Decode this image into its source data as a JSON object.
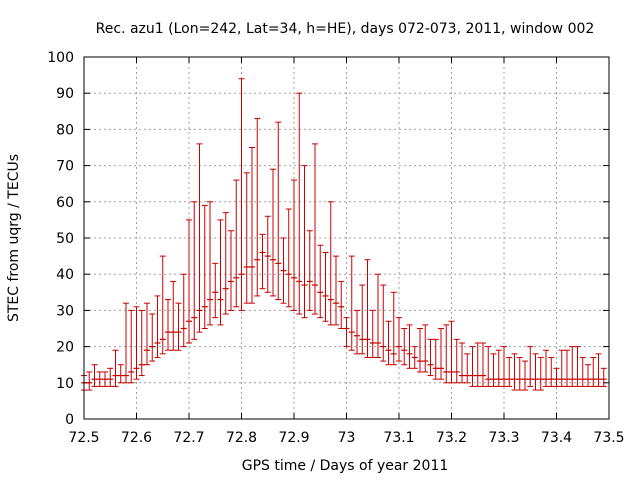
{
  "chart_data": {
    "type": "scatter",
    "title": "Rec. azu1 (Lon=242, Lat=34, h=HE), days 072-073, 2011, window 002",
    "xlabel": "GPS time / Days of year 2011",
    "ylabel": "STEC from uqrg / TECUs",
    "xlim": [
      72.5,
      73.5
    ],
    "ylim": [
      0,
      100
    ],
    "xticks": [
      72.5,
      72.6,
      72.7,
      72.8,
      72.9,
      73,
      73.1,
      73.2,
      73.3,
      73.4,
      73.5
    ],
    "xtick_labels": [
      "72.5",
      "72.6",
      "72.7",
      "72.8",
      "72.9",
      "73",
      "73.1",
      "73.2",
      "73.3",
      "73.4",
      "73.5"
    ],
    "yticks": [
      0,
      10,
      20,
      30,
      40,
      50,
      60,
      70,
      80,
      90,
      100
    ],
    "ytick_labels": [
      "0",
      "10",
      "20",
      "30",
      "40",
      "50",
      "60",
      "70",
      "80",
      "90",
      "100"
    ],
    "grid": true,
    "color": "#c80000",
    "series": [
      {
        "x": [
          72.5,
          72.51,
          72.52,
          72.53,
          72.54,
          72.55,
          72.56,
          72.57,
          72.58,
          72.59,
          72.6,
          72.61,
          72.62,
          72.63,
          72.64,
          72.65,
          72.66,
          72.67,
          72.68,
          72.69,
          72.7,
          72.71,
          72.72,
          72.73,
          72.74,
          72.75,
          72.76,
          72.77,
          72.78,
          72.79,
          72.8,
          72.81,
          72.82,
          72.83,
          72.84,
          72.85,
          72.86,
          72.87,
          72.88,
          72.89,
          72.9,
          72.91,
          72.92,
          72.93,
          72.94,
          72.95,
          72.96,
          72.97,
          72.98,
          72.99,
          73.0,
          73.01,
          73.02,
          73.03,
          73.04,
          73.05,
          73.06,
          73.07,
          73.08,
          73.09,
          73.1,
          73.11,
          73.12,
          73.13,
          73.14,
          73.15,
          73.16,
          73.17,
          73.18,
          73.19,
          73.2,
          73.21,
          73.22,
          73.23,
          73.24,
          73.25,
          73.26,
          73.27,
          73.28,
          73.29,
          73.3,
          73.31,
          73.32,
          73.33,
          73.34,
          73.35,
          73.36,
          73.37,
          73.38,
          73.39,
          73.4,
          73.41,
          73.42,
          73.43,
          73.44,
          73.45,
          73.46,
          73.47,
          73.48,
          73.49
        ],
        "y": [
          10,
          10,
          11,
          11,
          11,
          11,
          12,
          12,
          12,
          13,
          14,
          15,
          19,
          20,
          21,
          22,
          24,
          24,
          24,
          25,
          27,
          28,
          30,
          31,
          33,
          35,
          33,
          36,
          38,
          39,
          40,
          42,
          42,
          44,
          46,
          45,
          44,
          43,
          41,
          40,
          39,
          38,
          37,
          38,
          37,
          35,
          34,
          33,
          32,
          31,
          25,
          24,
          23,
          22,
          22,
          21,
          21,
          20,
          19,
          18,
          20,
          19,
          18,
          17,
          16,
          16,
          15,
          14,
          14,
          13,
          13,
          13,
          12,
          12,
          12,
          12,
          12,
          11,
          11,
          11,
          11,
          11,
          11,
          11,
          11,
          11,
          11,
          11,
          11,
          11,
          11,
          11,
          11,
          11,
          11,
          11,
          11,
          11,
          11,
          11
        ],
        "y_low": [
          8,
          8,
          9,
          9,
          9,
          9,
          9,
          10,
          10,
          10,
          11,
          12,
          15,
          16,
          17,
          18,
          19,
          19,
          19,
          20,
          21,
          22,
          24,
          25,
          26,
          28,
          26,
          29,
          30,
          31,
          30,
          32,
          32,
          34,
          36,
          35,
          34,
          33,
          32,
          31,
          30,
          29,
          28,
          30,
          29,
          28,
          27,
          26,
          26,
          25,
          20,
          19,
          18,
          18,
          17,
          17,
          17,
          16,
          15,
          15,
          16,
          15,
          14,
          14,
          13,
          13,
          12,
          11,
          11,
          10,
          10,
          10,
          10,
          10,
          9,
          9,
          9,
          9,
          9,
          9,
          9,
          9,
          8,
          8,
          8,
          9,
          8,
          8,
          9,
          9,
          9,
          9,
          9,
          9,
          9,
          9,
          9,
          9,
          9,
          9
        ],
        "y_high": [
          12,
          13,
          15,
          13,
          13,
          14,
          19,
          15,
          32,
          30,
          31,
          30,
          32,
          29,
          34,
          45,
          33,
          38,
          32,
          40,
          55,
          60,
          76,
          59,
          60,
          43,
          55,
          57,
          52,
          66,
          94,
          68,
          75,
          83,
          51,
          56,
          69,
          82,
          50,
          58,
          66,
          90,
          70,
          52,
          76,
          48,
          46,
          60,
          45,
          38,
          28,
          45,
          30,
          37,
          44,
          30,
          40,
          37,
          27,
          35,
          28,
          25,
          26,
          20,
          25,
          26,
          22,
          22,
          25,
          26,
          27,
          22,
          21,
          18,
          20,
          21,
          21,
          20,
          18,
          19,
          20,
          17,
          18,
          17,
          16,
          20,
          18,
          17,
          19,
          17,
          14,
          19,
          19,
          20,
          20,
          17,
          15,
          17,
          18,
          14
        ]
      }
    ]
  }
}
